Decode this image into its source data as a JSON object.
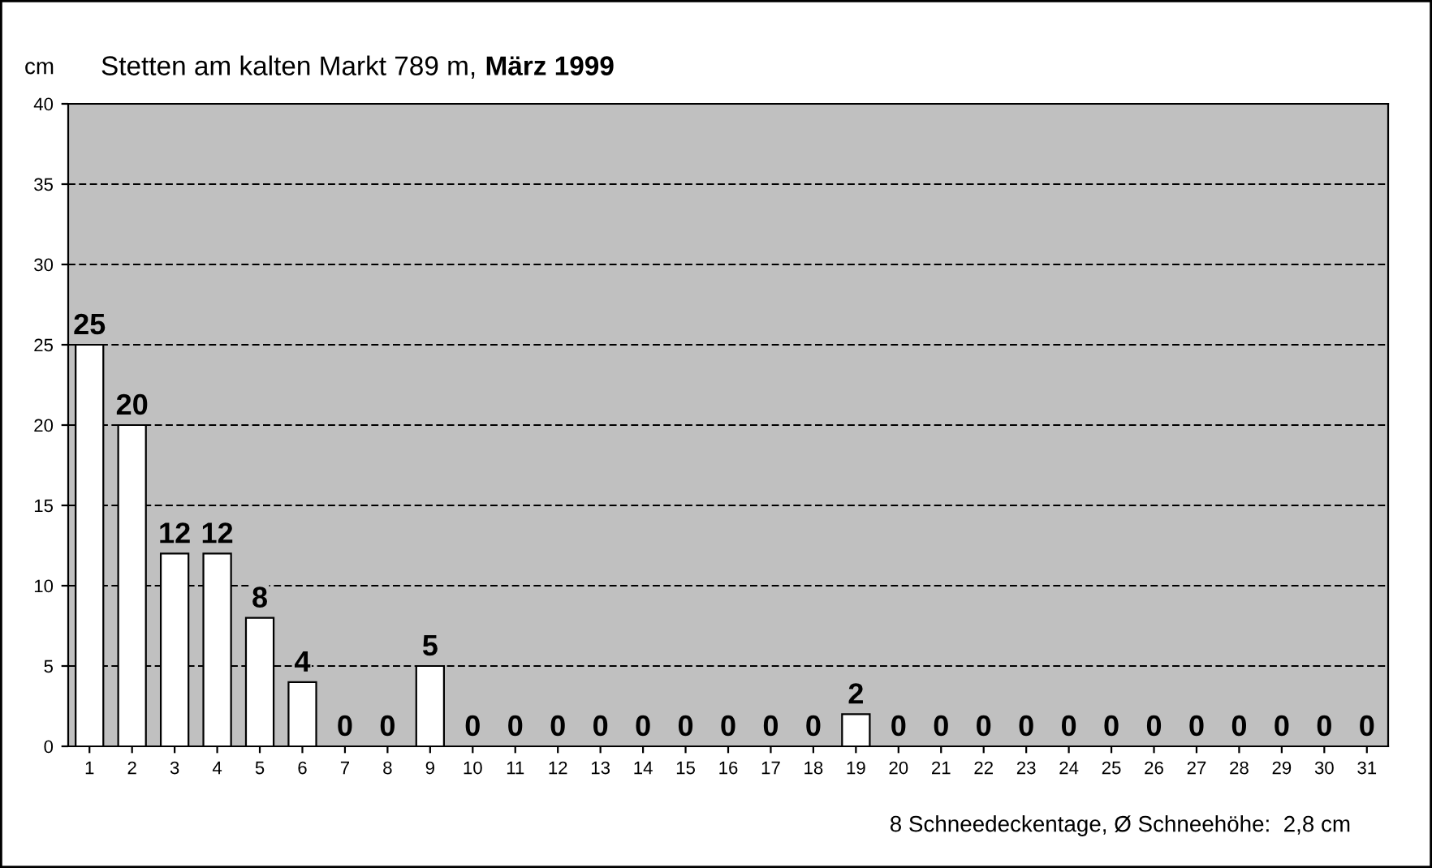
{
  "chart_data": {
    "type": "bar",
    "title": "Stetten am kalten Markt 789 m,",
    "subtitle": "März 1999",
    "ylabel": "cm",
    "categories": [
      "1",
      "2",
      "3",
      "4",
      "5",
      "6",
      "7",
      "8",
      "9",
      "10",
      "11",
      "12",
      "13",
      "14",
      "15",
      "16",
      "17",
      "18",
      "19",
      "20",
      "21",
      "22",
      "23",
      "24",
      "25",
      "26",
      "27",
      "28",
      "29",
      "30",
      "31"
    ],
    "values": [
      25,
      20,
      12,
      12,
      8,
      4,
      0,
      0,
      5,
      0,
      0,
      0,
      0,
      0,
      0,
      0,
      0,
      0,
      2,
      0,
      0,
      0,
      0,
      0,
      0,
      0,
      0,
      0,
      0,
      0,
      0
    ],
    "color": "#ffffff",
    "ylim": [
      0,
      40
    ],
    "yticks": [
      0,
      5,
      10,
      15,
      20,
      25,
      30,
      35,
      40
    ],
    "grid": "y",
    "data_labels": true,
    "annotations": [
      "8 Schneedeckentage, Ø Schneehöhe:  2,8 cm"
    ]
  }
}
